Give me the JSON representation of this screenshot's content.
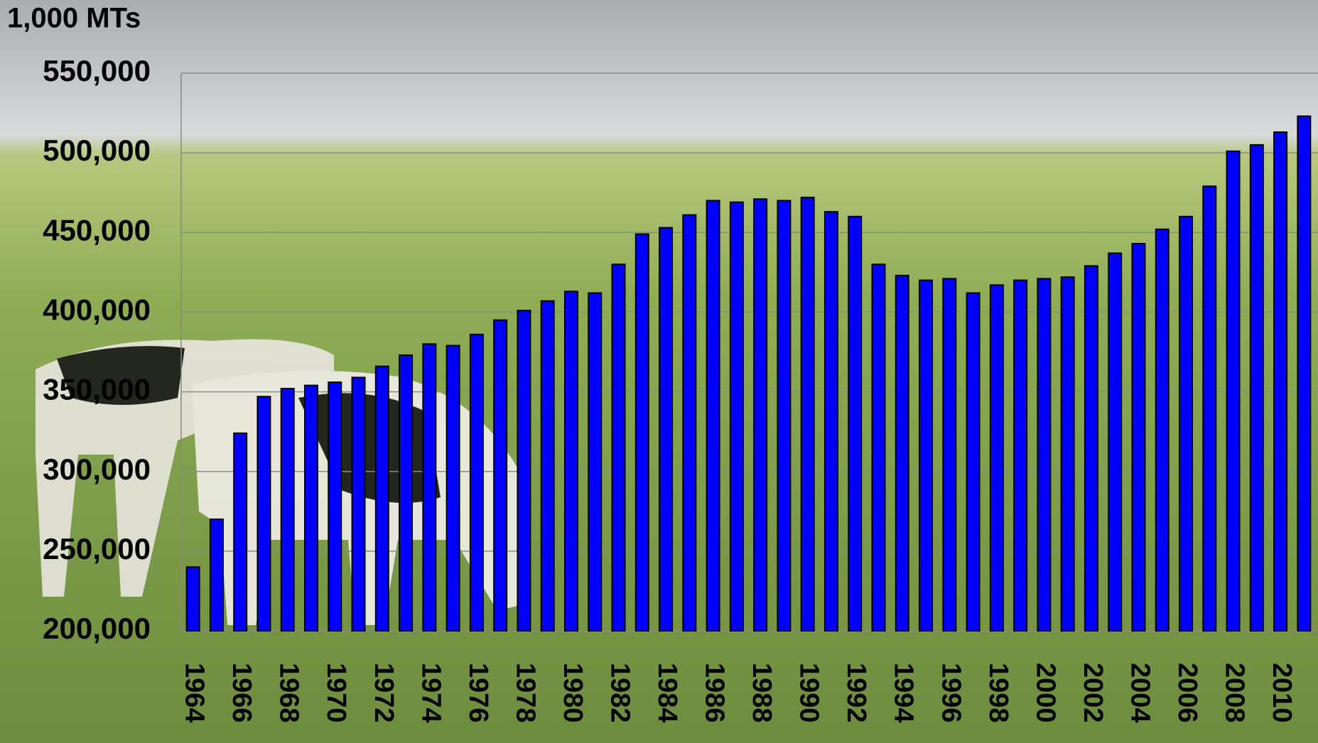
{
  "chart_data": {
    "type": "bar",
    "y_axis_label": "1,000 MTs",
    "categories": [
      "1964",
      null,
      "1966",
      null,
      "1968",
      null,
      "1970",
      null,
      "1972",
      null,
      "1974",
      null,
      "1976",
      null,
      "1978",
      null,
      "1980",
      null,
      "1982",
      null,
      "1984",
      null,
      "1986",
      null,
      "1988",
      null,
      "1990",
      null,
      "1992",
      null,
      "1994",
      null,
      "1996",
      null,
      "1998",
      null,
      "2000",
      null,
      "2002",
      null,
      "2004",
      null,
      "2006",
      null,
      "2008",
      null,
      "2010",
      null
    ],
    "values": [
      240000,
      270000,
      324000,
      347000,
      352000,
      354000,
      356000,
      359000,
      366000,
      373000,
      380000,
      379000,
      386000,
      395000,
      401000,
      407000,
      413000,
      412000,
      430000,
      449000,
      453000,
      461000,
      470000,
      469000,
      471000,
      470000,
      472000,
      463000,
      460000,
      430000,
      423000,
      420000,
      421000,
      412000,
      417000,
      420000,
      421000,
      422000,
      429000,
      437000,
      443000,
      452000,
      460000,
      479000,
      501000,
      505000,
      513000,
      523000
    ],
    "color": "#0000ff",
    "ylim": [
      200000,
      550000
    ],
    "yticks": [
      {
        "value": 200000,
        "label": "200,000"
      },
      {
        "value": 250000,
        "label": "250,000"
      },
      {
        "value": 300000,
        "label": "300,000"
      },
      {
        "value": 350000,
        "label": "350,000"
      },
      {
        "value": 400000,
        "label": "400,000"
      },
      {
        "value": 450000,
        "label": "450,000"
      },
      {
        "value": 500000,
        "label": "500,000"
      },
      {
        "value": 550000,
        "label": "550,000"
      }
    ],
    "grid": true
  }
}
